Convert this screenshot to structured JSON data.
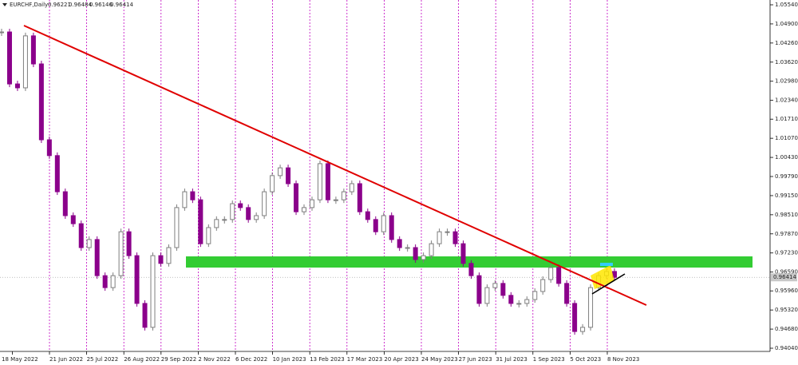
{
  "header": {
    "symbol": "EURCHF,Daily",
    "open": 0.96221,
    "high": 0.96484,
    "low": 0.96146,
    "close": 0.96414
  },
  "chart_data": {
    "type": "candlestick",
    "up_color": "#7f7f7f",
    "down_color": "#8b008b",
    "ylim": [
      0.9404,
      1.0554
    ],
    "yticks": [
      {
        "value": 1.0554,
        "label": "1.05540"
      },
      {
        "value": 1.049,
        "label": "1.04900"
      },
      {
        "value": 1.0426,
        "label": "1.04260"
      },
      {
        "value": 1.0362,
        "label": "1.03620"
      },
      {
        "value": 1.0298,
        "label": "1.02980"
      },
      {
        "value": 1.0234,
        "label": "1.02340"
      },
      {
        "value": 1.0171,
        "label": "1.01710"
      },
      {
        "value": 1.0107,
        "label": "1.01070"
      },
      {
        "value": 1.0043,
        "label": "1.00430"
      },
      {
        "value": 0.9979,
        "label": "0.99790"
      },
      {
        "value": 0.9915,
        "label": "0.99150"
      },
      {
        "value": 0.9851,
        "label": "0.98510"
      },
      {
        "value": 0.9787,
        "label": "0.97870"
      },
      {
        "value": 0.9723,
        "label": "0.97230"
      },
      {
        "value": 0.9659,
        "label": "0.96590"
      },
      {
        "value": 0.9596,
        "label": "0.95960"
      },
      {
        "value": 0.9532,
        "label": "0.95320"
      },
      {
        "value": 0.9468,
        "label": "0.94680"
      },
      {
        "value": 0.9404,
        "label": "0.94040"
      }
    ],
    "xticks": [
      "18 May 2022",
      "21 Jun 2022",
      "25 Jul 2022",
      "26 Aug 2022",
      "29 Sep 2022",
      "2 Nov 2022",
      "6 Dec 2022",
      "10 Jan 2023",
      "13 Feb 2023",
      "17 Mar 2023",
      "20 Apr 2023",
      "24 May 2023",
      "27 Jun 2023",
      "31 Jul 2023",
      "1 Sep 2023",
      "5 Oct 2023",
      "8 Nov 2023"
    ],
    "values": [
      1.0463,
      1.0289,
      1.0276,
      1.045,
      1.0356,
      1.0102,
      1.0049,
      0.9928,
      0.9848,
      0.9821,
      0.9741,
      0.9768,
      0.9647,
      0.9607,
      0.9647,
      0.9794,
      0.9714,
      0.9554,
      0.9474,
      0.9714,
      0.9688,
      0.9741,
      0.9875,
      0.9928,
      0.9901,
      0.9754,
      0.9808,
      0.9835,
      0.9835,
      0.9888,
      0.9875,
      0.9835,
      0.9848,
      0.9928,
      0.9982,
      1.0008,
      0.9955,
      0.9861,
      0.9875,
      0.9901,
      1.0022,
      0.9901,
      0.9901,
      0.9928,
      0.9955,
      0.9861,
      0.9835,
      0.9794,
      0.9848,
      0.9768,
      0.9741,
      0.9741,
      0.9701,
      0.9714,
      0.9754,
      0.9794,
      0.9794,
      0.9754,
      0.9688,
      0.9647,
      0.9554,
      0.9607,
      0.9621,
      0.9581,
      0.9554,
      0.9554,
      0.9567,
      0.9594,
      0.9634,
      0.9674,
      0.9621,
      0.9554,
      0.946,
      0.9474,
      0.9607,
      0.9647,
      0.9661,
      0.96414
    ]
  }
}
